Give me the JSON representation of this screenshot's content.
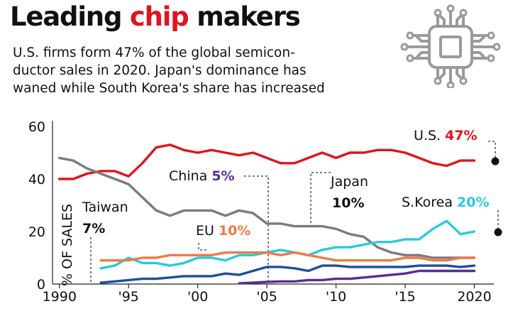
{
  "title": {
    "part1": "Leading ",
    "highlight": "chip",
    "part2": " makers"
  },
  "subtitle": [
    "U.S. firms form 47% of the global semicon-",
    "ductor sales in 2020. Japan's dominance has",
    "waned while South Korea's share has increased"
  ],
  "icon": "microchip-icon",
  "chart_data": {
    "type": "line",
    "ylabel": "% OF SALES",
    "xlabel": "",
    "xlim": [
      1989.5,
      2021
    ],
    "ylim": [
      0,
      60
    ],
    "yticks": [
      0,
      20,
      40,
      60
    ],
    "xticks": [
      1990,
      1995,
      2000,
      2005,
      2010,
      2015,
      2020
    ],
    "xtick_labels": [
      "1990",
      "'95",
      "'00",
      "'05",
      "'10",
      "'15",
      "2020"
    ],
    "grid": false,
    "series": [
      {
        "name": "U.S.",
        "value_label": "47%",
        "color": "#e0141e",
        "x": [
          1990,
          1991,
          1992,
          1993,
          1994,
          1995,
          1996,
          1997,
          1998,
          1999,
          2000,
          2001,
          2002,
          2003,
          2004,
          2005,
          2006,
          2007,
          2008,
          2009,
          2010,
          2011,
          2012,
          2013,
          2014,
          2015,
          2016,
          2017,
          2018,
          2019,
          2020
        ],
        "y": [
          40,
          40,
          42,
          43,
          43,
          41,
          46,
          52,
          53,
          51,
          50,
          51,
          50,
          49,
          50,
          48,
          46,
          46,
          48,
          50,
          48,
          50,
          50,
          51,
          51,
          50,
          48,
          46,
          45,
          47,
          47
        ]
      },
      {
        "name": "Japan",
        "value_label": "10%",
        "color": "#7b7b7b",
        "x": [
          1990,
          1991,
          1992,
          1993,
          1994,
          1995,
          1996,
          1997,
          1998,
          1999,
          2000,
          2001,
          2002,
          2003,
          2004,
          2005,
          2006,
          2007,
          2008,
          2009,
          2010,
          2011,
          2012,
          2013,
          2014,
          2015,
          2016,
          2017,
          2018,
          2019,
          2020
        ],
        "y": [
          48,
          47,
          44,
          42,
          40,
          38,
          33,
          28,
          26,
          28,
          28,
          28,
          26,
          28,
          27,
          23,
          23,
          22,
          22,
          22,
          21,
          19,
          18,
          14,
          12,
          11,
          11,
          10,
          10,
          10,
          10
        ]
      },
      {
        "name": "S.Korea",
        "value_label": "20%",
        "color": "#29c9df",
        "x": [
          1993,
          1994,
          1995,
          1996,
          1997,
          1998,
          1999,
          2000,
          2001,
          2002,
          2003,
          2004,
          2005,
          2006,
          2007,
          2008,
          2009,
          2010,
          2011,
          2012,
          2013,
          2014,
          2015,
          2016,
          2017,
          2018,
          2019,
          2020
        ],
        "y": [
          6,
          7,
          10,
          8,
          8,
          7,
          8,
          10,
          10,
          9,
          11,
          11,
          12,
          13,
          12,
          11,
          13,
          14,
          14,
          15,
          16,
          16,
          17,
          17,
          21,
          24,
          19,
          20
        ]
      },
      {
        "name": "EU",
        "value_label": "10%",
        "color": "#f07a45",
        "x": [
          1993,
          1994,
          1995,
          1996,
          1997,
          1998,
          1999,
          2000,
          2001,
          2002,
          2003,
          2004,
          2005,
          2006,
          2007,
          2008,
          2009,
          2010,
          2011,
          2012,
          2013,
          2014,
          2015,
          2016,
          2017,
          2018,
          2019,
          2020
        ],
        "y": [
          9,
          9,
          9,
          10,
          10,
          11,
          11,
          11,
          11,
          12,
          12,
          12,
          12,
          11,
          12,
          11,
          10,
          9,
          9,
          9,
          9,
          9,
          10,
          10,
          9,
          9,
          10,
          10
        ]
      },
      {
        "name": "Taiwan",
        "value_label": "7%",
        "color": "#1f4e9c",
        "x": [
          1993,
          1994,
          1995,
          1996,
          1997,
          1998,
          1999,
          2000,
          2001,
          2002,
          2003,
          2004,
          2005,
          2006,
          2007,
          2008,
          2009,
          2010,
          2011,
          2012,
          2013,
          2014,
          2015,
          2016,
          2017,
          2018,
          2019,
          2020
        ],
        "y": [
          0.5,
          1,
          1.5,
          2,
          2,
          2.5,
          3,
          3,
          3,
          4,
          3.5,
          5,
          6.5,
          6.5,
          6,
          5,
          7,
          7,
          6.5,
          6.5,
          6.5,
          6.5,
          6.5,
          7,
          7,
          7,
          6.5,
          7
        ]
      },
      {
        "name": "China",
        "value_label": "5%",
        "color": "#5a2d91",
        "x": [
          2003,
          2004,
          2005,
          2006,
          2007,
          2008,
          2009,
          2010,
          2011,
          2012,
          2013,
          2014,
          2015,
          2016,
          2017,
          2018,
          2019,
          2020
        ],
        "y": [
          0.3,
          0.5,
          0.8,
          1,
          1,
          1.5,
          1.5,
          2,
          2,
          2.5,
          3,
          3.5,
          4,
          5,
          5,
          5,
          5,
          5
        ]
      }
    ]
  }
}
